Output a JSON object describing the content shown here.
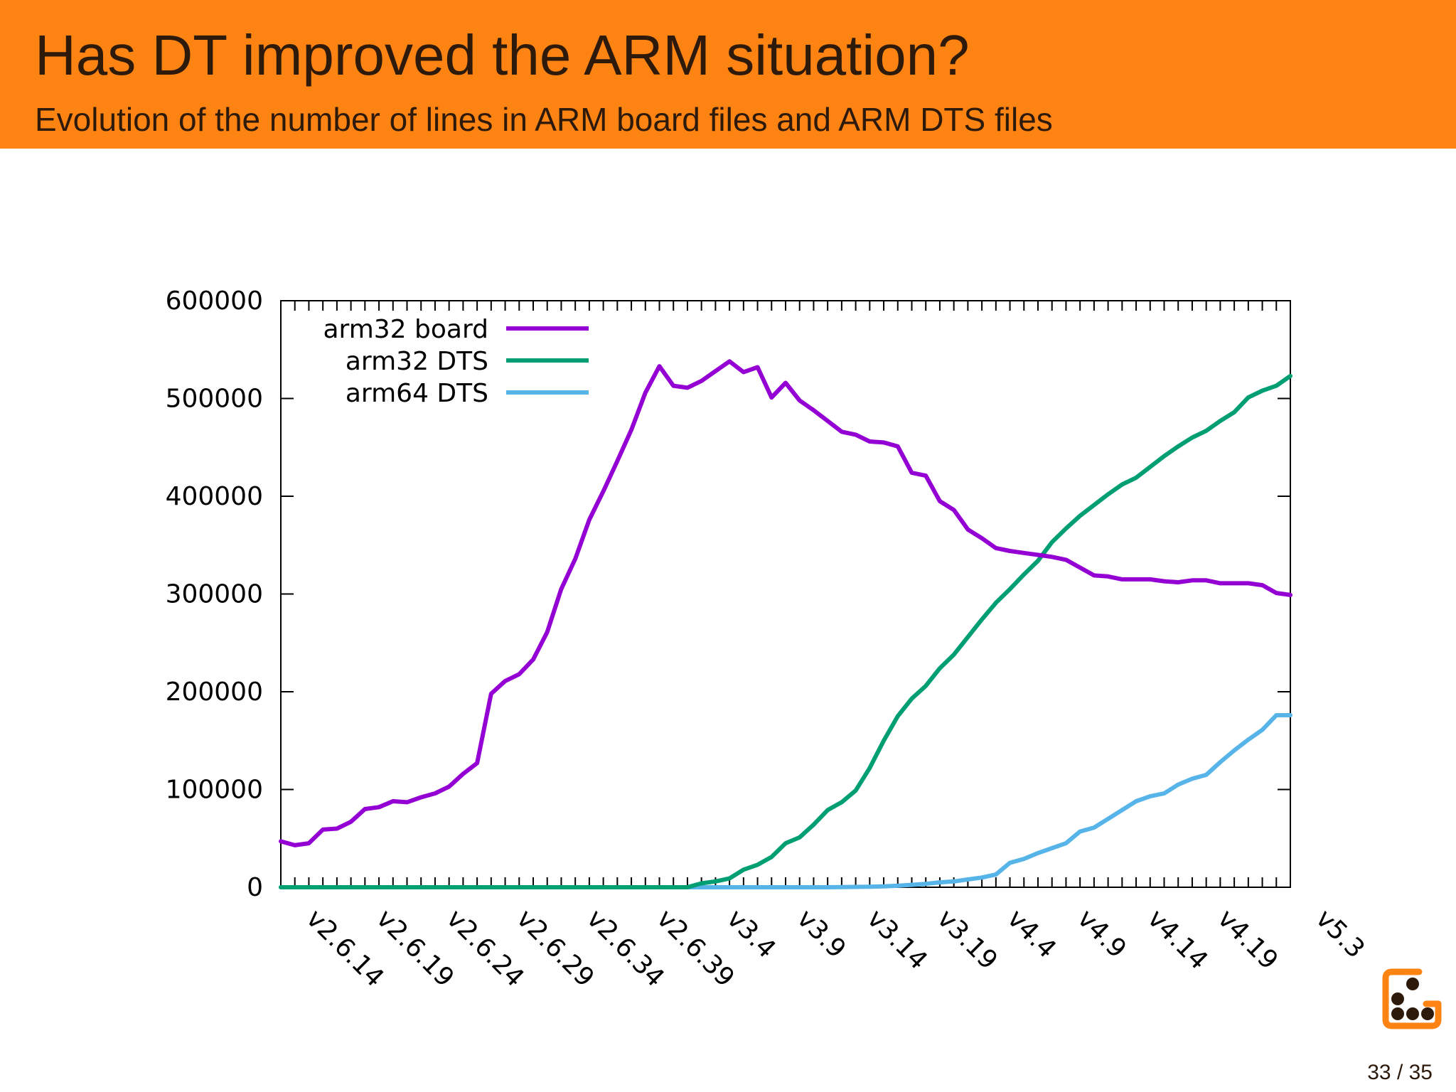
{
  "slide": {
    "title": "Has DT improved the ARM situation?",
    "subtitle": "Evolution of the number of lines in ARM board files and ARM DTS files",
    "page_number": "33 / 35",
    "header_color": "#fd8313"
  },
  "logo": {
    "icon": "dice-g-logo-icon",
    "color": "#fd8313"
  },
  "chart_data": {
    "type": "line",
    "title": "",
    "xlabel": "",
    "ylabel": "",
    "grid": false,
    "legend": "top-left",
    "ylim": [
      0,
      600000
    ],
    "yticks": [
      0,
      100000,
      200000,
      300000,
      400000,
      500000,
      600000
    ],
    "x_labels": [
      "v2.6.14",
      "v2.6.19",
      "v2.6.24",
      "v2.6.29",
      "v2.6.34",
      "v2.6.39",
      "v3.4",
      "v3.9",
      "v3.14",
      "v3.19",
      "v4.4",
      "v4.9",
      "v4.14",
      "v4.19",
      "v5.3"
    ],
    "x_label_index": [
      0,
      5,
      10,
      15,
      20,
      25,
      30,
      35,
      40,
      45,
      50,
      55,
      60,
      65,
      72
    ],
    "x_count": 73,
    "series": [
      {
        "name": "arm32 board",
        "color": "#9400d3",
        "values": [
          47000,
          43000,
          45000,
          59000,
          60000,
          67000,
          80000,
          82000,
          88000,
          87000,
          92000,
          96000,
          103000,
          116000,
          127000,
          198000,
          211000,
          218000,
          233000,
          261000,
          305000,
          336000,
          376000,
          405000,
          436000,
          468000,
          506000,
          533000,
          513000,
          511000,
          518000,
          528000,
          538000,
          527000,
          532000,
          501000,
          516000,
          498000,
          488000,
          477000,
          466000,
          463000,
          456000,
          455000,
          451000,
          424000,
          421000,
          395000,
          386000,
          366000,
          357000,
          347000,
          344000,
          342000,
          340000,
          338000,
          335000,
          327000,
          319000,
          318000,
          315000,
          315000,
          315000,
          313000,
          312000,
          314000,
          314000,
          311000,
          311000,
          311000,
          309000,
          301000,
          299000
        ]
      },
      {
        "name": "arm32 DTS",
        "color": "#009e73",
        "values": [
          0,
          0,
          0,
          0,
          0,
          0,
          0,
          0,
          0,
          0,
          0,
          0,
          0,
          0,
          0,
          0,
          0,
          0,
          0,
          0,
          0,
          0,
          0,
          0,
          0,
          0,
          0,
          0,
          0,
          0,
          4000,
          6000,
          9000,
          18000,
          23000,
          31000,
          45000,
          51000,
          64000,
          79000,
          87000,
          99000,
          122000,
          150000,
          175000,
          193000,
          206000,
          224000,
          238000,
          256000,
          274000,
          291000,
          305000,
          320000,
          334000,
          353000,
          367000,
          380000,
          391000,
          402000,
          412000,
          419000,
          430000,
          441000,
          451000,
          460000,
          467000,
          477000,
          486000,
          501000,
          508000,
          513000,
          523000
        ]
      },
      {
        "name": "arm64 DTS",
        "color": "#56b4e9",
        "values": [
          0,
          0,
          0,
          0,
          0,
          0,
          0,
          0,
          0,
          0,
          0,
          0,
          0,
          0,
          0,
          0,
          0,
          0,
          0,
          0,
          0,
          0,
          0,
          0,
          0,
          0,
          0,
          0,
          0,
          0,
          0,
          0,
          0,
          0,
          0,
          0,
          0,
          0,
          0,
          0,
          200,
          400,
          600,
          900,
          1500,
          2500,
          3500,
          5000,
          6000,
          8000,
          10000,
          13000,
          25000,
          29000,
          35000,
          40000,
          45000,
          57000,
          61000,
          70000,
          79000,
          88000,
          93000,
          96000,
          105000,
          111000,
          115000,
          128000,
          140000,
          151000,
          161000,
          176000,
          176000
        ]
      }
    ]
  }
}
